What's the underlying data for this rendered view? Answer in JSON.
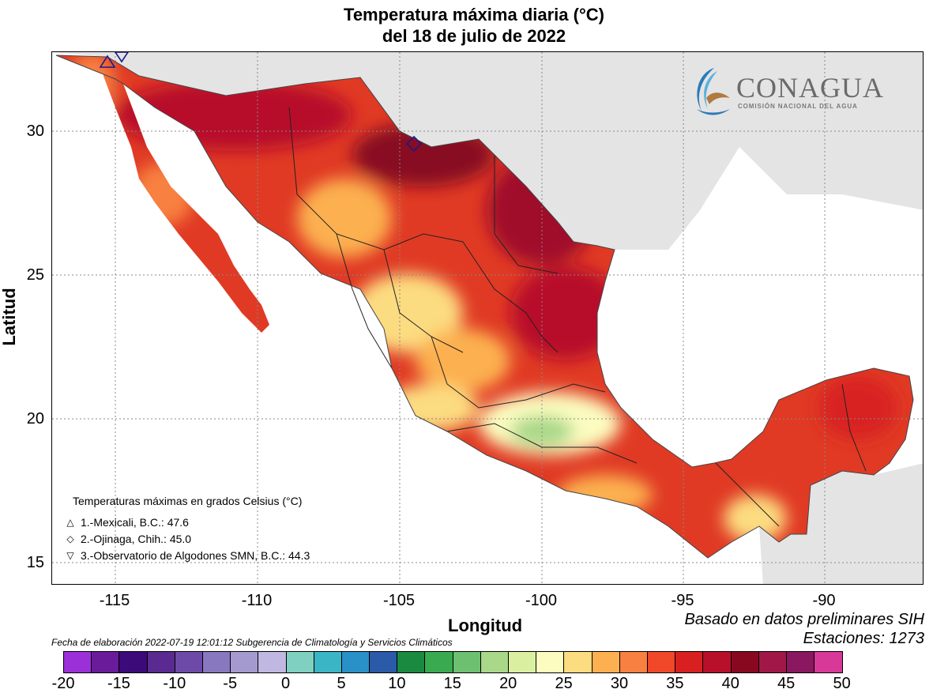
{
  "title_line1": "Temperatura máxima diaria (°C)",
  "title_line2": "del 18 de julio de 2022",
  "axes": {
    "xlabel": "Longitud",
    "ylabel": "Latitud",
    "xticks": [
      "-115",
      "-110",
      "-105",
      "-100",
      "-95",
      "-90"
    ],
    "xtick_values": [
      -115,
      -110,
      -105,
      -100,
      -95,
      -90
    ],
    "yticks": [
      "30",
      "25",
      "20",
      "15"
    ],
    "ytick_values": [
      30,
      25,
      20,
      15
    ],
    "xlim": [
      -117,
      -86.3
    ],
    "ylim": [
      14.3,
      32.8
    ],
    "grid": true
  },
  "logo": {
    "name": "CONAGUA",
    "subtitle": "COMISIÓN NACIONAL DEL AGUA"
  },
  "legend": {
    "title": "Temperaturas máximas en grados Celsius (°C)",
    "items": [
      {
        "symbol": "△",
        "label": "1.-Mexicali, B.C.: 47.6"
      },
      {
        "symbol": "◇",
        "label": "2.-Ojinaga, Chih.: 45.0"
      },
      {
        "symbol": "▽",
        "label": "3.-Observatorio de Algodones SMN, B.C.: 44.3"
      }
    ]
  },
  "notes": {
    "basado": "Basado en datos preliminares SIH",
    "estaciones": "Estaciones:  1273",
    "fecha": "Fecha de elaboración 2022-07-19 12:01:12 Subgerencia de Climatología y Servicios Climáticos"
  },
  "colorbar": {
    "labels": [
      "-20",
      "-15",
      "-10",
      "-5",
      "0",
      "5",
      "10",
      "15",
      "20",
      "25",
      "30",
      "35",
      "40",
      "45",
      "50"
    ],
    "colors": [
      "#9b30d9",
      "#6a1b9a",
      "#3d0a7a",
      "#5a2a90",
      "#6e4aa8",
      "#8878c0",
      "#a59ad0",
      "#c0b8e0",
      "#7fd0c0",
      "#3ab5c5",
      "#2a90c8",
      "#2a5aa8",
      "#1a8a40",
      "#3aaa50",
      "#6cc070",
      "#a8d888",
      "#daf0a0",
      "#fcfcc0",
      "#fcdc80",
      "#fcb050",
      "#f88040",
      "#f04828",
      "#d82020",
      "#b8102a",
      "#880820",
      "#a01848",
      "#8a1860",
      "#d83898"
    ]
  },
  "markers": [
    {
      "symbol": "triangle-up",
      "lon": -115.3,
      "lat": 32.6
    },
    {
      "symbol": "diamond",
      "lon": -104.4,
      "lat": 29.6
    },
    {
      "symbol": "triangle-down",
      "lon": -114.8,
      "lat": 32.7
    }
  ]
}
